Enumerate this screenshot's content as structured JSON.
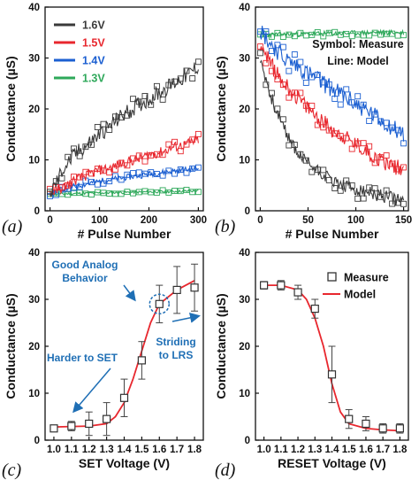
{
  "panel_labels": [
    "(a)",
    "(b)",
    "(c)",
    "(d)"
  ],
  "colors": {
    "V16": "#3a3a3a",
    "V15": "#e8272e",
    "V14": "#1b5fd1",
    "V13": "#2ea85a",
    "annotation": "#1f6fb5"
  },
  "chart_data": [
    {
      "panel": "(a)",
      "type": "line",
      "xlabel": "# Pulse Number",
      "ylabel": "Conductance (µS)",
      "xlim": [
        -10,
        310
      ],
      "ylim": [
        0,
        40
      ],
      "xticks": [
        0,
        100,
        200,
        300
      ],
      "yticks": [
        0,
        10,
        20,
        30,
        40
      ],
      "legend": "top-left",
      "series": [
        {
          "name": "1.6V",
          "color": "#3a3a3a",
          "x": [
            0,
            10,
            25,
            50,
            75,
            100,
            125,
            150,
            175,
            200,
            225,
            250,
            275,
            300
          ],
          "values": [
            3.5,
            5,
            8,
            11,
            13,
            15,
            17,
            19,
            20.5,
            22,
            23.5,
            25,
            26.5,
            28.5
          ]
        },
        {
          "name": "1.5V",
          "color": "#e8272e",
          "x": [
            0,
            25,
            50,
            75,
            100,
            125,
            150,
            175,
            200,
            225,
            250,
            275,
            300
          ],
          "values": [
            3.5,
            4.5,
            6,
            7,
            8,
            8.5,
            9.5,
            10,
            11,
            11.5,
            12.5,
            13,
            14
          ]
        },
        {
          "name": "1.4V",
          "color": "#1b5fd1",
          "x": [
            0,
            50,
            100,
            150,
            200,
            250,
            300
          ],
          "values": [
            3.5,
            4.8,
            5.8,
            6.5,
            7.2,
            7.8,
            8.3
          ]
        },
        {
          "name": "1.3V",
          "color": "#2ea85a",
          "x": [
            0,
            50,
            100,
            150,
            200,
            250,
            300
          ],
          "values": [
            3.2,
            3.4,
            3.5,
            3.6,
            3.7,
            3.8,
            3.9
          ]
        }
      ]
    },
    {
      "panel": "(b)",
      "type": "line",
      "xlabel": "# Pulse Number",
      "ylabel": "Conductance (µS)",
      "xlim": [
        -5,
        155
      ],
      "ylim": [
        0,
        40
      ],
      "xticks": [
        0,
        50,
        100,
        150
      ],
      "yticks": [
        0,
        10,
        20,
        30,
        40
      ],
      "annotations": [
        "Symbol: Measure",
        "Line: Model"
      ],
      "series": [
        {
          "name": "1.3V",
          "color": "#2ea85a",
          "x": [
            0,
            25,
            50,
            75,
            100,
            125,
            150
          ],
          "values": [
            34.5,
            34.6,
            34.7,
            34.8,
            34.9,
            35.0,
            35.0
          ]
        },
        {
          "name": "1.4V",
          "color": "#1b5fd1",
          "x": [
            0,
            10,
            25,
            50,
            75,
            100,
            125,
            150
          ],
          "values": [
            35.5,
            33,
            30,
            27,
            24,
            21,
            18,
            15
          ]
        },
        {
          "name": "1.5V",
          "color": "#e8272e",
          "x": [
            0,
            10,
            25,
            50,
            75,
            100,
            125,
            150
          ],
          "values": [
            33,
            29,
            25,
            20,
            16,
            13,
            10,
            8
          ]
        },
        {
          "name": "1.6V",
          "color": "#3a3a3a",
          "x": [
            0,
            10,
            25,
            40,
            60,
            80,
            100,
            125,
            150
          ],
          "values": [
            30,
            23,
            16,
            11,
            8,
            5.5,
            4,
            3,
            2
          ]
        }
      ]
    },
    {
      "panel": "(c)",
      "type": "line",
      "xlabel": "SET Voltage (V)",
      "ylabel": "Conductance (µS)",
      "xlim": [
        0.95,
        1.85
      ],
      "ylim": [
        0,
        40
      ],
      "xticks": [
        "1.0",
        "1.1",
        "1.2",
        "1.3",
        "1.4",
        "1.5",
        "1.6",
        "1.7",
        "1.8"
      ],
      "yticks": [
        0,
        10,
        20,
        30,
        40
      ],
      "measure": {
        "x": [
          1.0,
          1.1,
          1.2,
          1.3,
          1.4,
          1.5,
          1.6,
          1.7,
          1.8
        ],
        "values": [
          2.5,
          3,
          3.5,
          4.5,
          9,
          17,
          29,
          32,
          32.5
        ],
        "err": [
          0.3,
          1,
          2.5,
          3.5,
          4,
          4,
          4,
          5,
          5
        ]
      },
      "model": {
        "x": [
          1.0,
          1.2,
          1.3,
          1.35,
          1.4,
          1.45,
          1.5,
          1.55,
          1.6,
          1.7,
          1.8
        ],
        "values": [
          2.8,
          3,
          3.5,
          5,
          8,
          13,
          19,
          25,
          29,
          32,
          34
        ]
      },
      "annotations": [
        "Good Analog",
        "Behavior",
        "Striding",
        "to LRS",
        "Harder to SET"
      ]
    },
    {
      "panel": "(d)",
      "type": "line",
      "xlabel": "RESET Voltage (V)",
      "ylabel": "Conductance (µS)",
      "xlim": [
        0.95,
        1.85
      ],
      "ylim": [
        0,
        40
      ],
      "xticks": [
        "1.0",
        "1.1",
        "1.2",
        "1.3",
        "1.4",
        "1.5",
        "1.6",
        "1.7",
        "1.8"
      ],
      "yticks": [
        0,
        10,
        20,
        30,
        40
      ],
      "legend": "top-right",
      "legend_entries": [
        "Measure",
        "Model"
      ],
      "measure": {
        "x": [
          1.0,
          1.1,
          1.2,
          1.3,
          1.4,
          1.5,
          1.6,
          1.7,
          1.8
        ],
        "values": [
          33,
          33,
          31.5,
          28,
          14,
          4.5,
          3.5,
          2.5,
          2.5
        ],
        "err": [
          0.8,
          1,
          1.5,
          2,
          6,
          2,
          1.5,
          1,
          1
        ]
      },
      "model": {
        "x": [
          1.0,
          1.1,
          1.2,
          1.25,
          1.3,
          1.35,
          1.4,
          1.45,
          1.5,
          1.6,
          1.7,
          1.8
        ],
        "values": [
          33,
          33,
          32,
          30,
          26,
          20,
          12,
          6,
          3.5,
          2.5,
          2.2,
          2
        ]
      }
    }
  ]
}
